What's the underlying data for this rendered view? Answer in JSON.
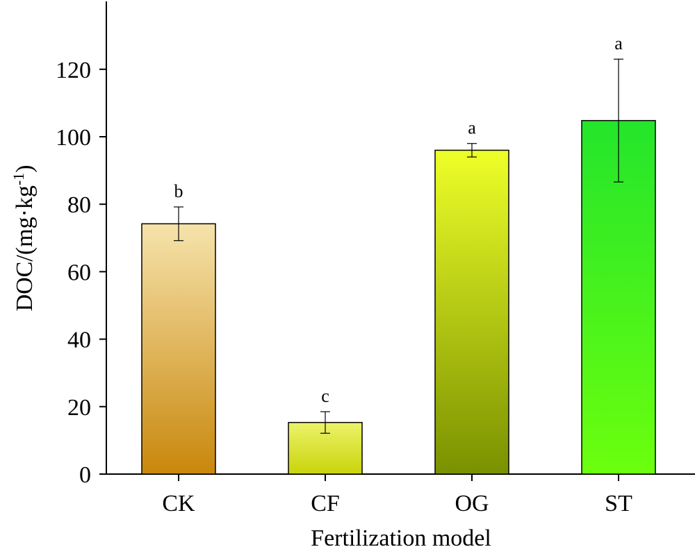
{
  "chart_data": {
    "type": "bar",
    "xlabel": "Fertilization model",
    "ylabel_main": "DOC/(mg·kg",
    "ylabel_sup": "-1",
    "ylabel_close": ")",
    "ylim": [
      0,
      138
    ],
    "yticks": [
      "0",
      "20",
      "40",
      "60",
      "80",
      "100",
      "120"
    ],
    "categories": [
      "CK",
      "CF",
      "OG",
      "ST"
    ],
    "values": [
      74.2,
      15.3,
      96.0,
      104.8
    ],
    "errors": [
      5.0,
      3.2,
      2.0,
      18.2
    ],
    "significance": [
      "b",
      "c",
      "a",
      "a"
    ],
    "colors": [
      {
        "top": "#f6e3ab",
        "bottom": "#c9870c"
      },
      {
        "top": "#ecf36a",
        "bottom": "#c9d40a"
      },
      {
        "top": "#eeff29",
        "bottom": "#7a9100"
      },
      {
        "top": "#23e52b",
        "bottom": "#6cff0e"
      }
    ],
    "grid": false,
    "legend": "none"
  }
}
